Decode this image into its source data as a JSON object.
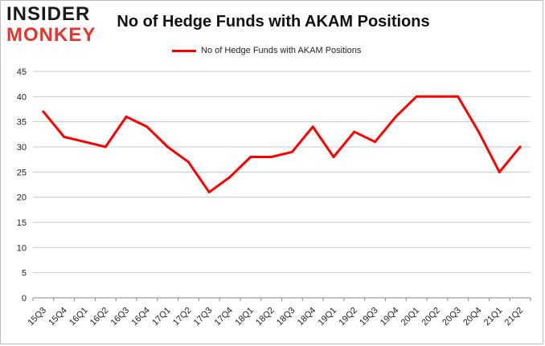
{
  "header": {
    "logo_line1": "INSIDER",
    "logo_line2": "MONKEY"
  },
  "colors": {
    "series": "#ff0000",
    "grid": "#c8c8c8",
    "logo_red": "#e8332d"
  },
  "chart_data": {
    "type": "line",
    "title": "No of Hedge Funds with AKAM Positions",
    "xlabel": "",
    "ylabel": "",
    "ylim": [
      0,
      45
    ],
    "yticks": [
      0,
      5,
      10,
      15,
      20,
      25,
      30,
      35,
      40,
      45
    ],
    "grid": true,
    "legend_position": "top-center",
    "categories": [
      "15Q3",
      "15Q4",
      "16Q1",
      "16Q2",
      "16Q3",
      "16Q4",
      "17Q1",
      "17Q2",
      "17Q3",
      "17Q4",
      "18Q1",
      "18Q2",
      "18Q3",
      "18Q4",
      "19Q1",
      "19Q2",
      "19Q3",
      "19Q4",
      "20Q1",
      "20Q2",
      "20Q3",
      "20Q4",
      "21Q1",
      "21Q2"
    ],
    "series": [
      {
        "name": "No of Hedge Funds with AKAM Positions",
        "values": [
          37,
          32,
          31,
          30,
          36,
          34,
          30,
          27,
          21,
          24,
          28,
          28,
          29,
          34,
          28,
          33,
          31,
          36,
          40,
          40,
          40,
          33,
          25,
          30
        ]
      }
    ]
  }
}
